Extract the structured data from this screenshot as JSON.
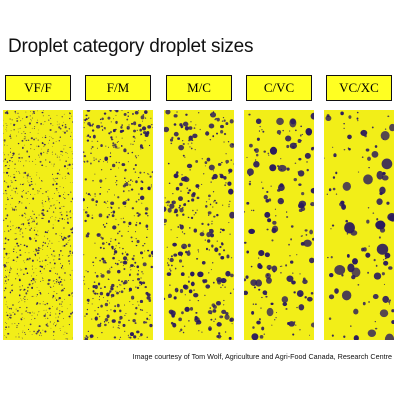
{
  "title": "Droplet category droplet sizes",
  "categories": [
    {
      "label": "VF/F"
    },
    {
      "label": "F/M"
    },
    {
      "label": "M/C"
    },
    {
      "label": "C/VC"
    },
    {
      "label": "VC/XC"
    }
  ],
  "credit": "Image courtesy of Tom Wolf, Agriculture and Agri-Food Canada, Research Centre",
  "colors": {
    "card_yellow": "#f2ee18",
    "droplet": "#2a1a5e",
    "label_fill": "#ffff22"
  }
}
